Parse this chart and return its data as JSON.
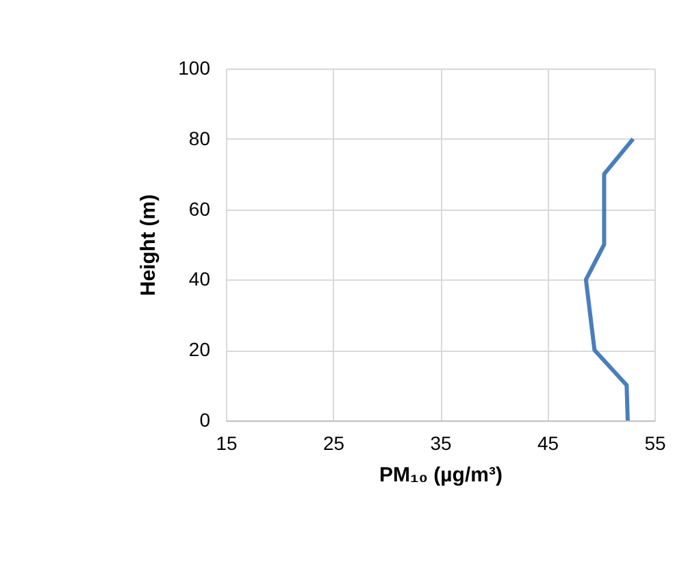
{
  "chart_data": {
    "type": "line",
    "xlabel": "PM₁₀ (µg/m³)",
    "ylabel": "Height (m)",
    "x": [
      52.5,
      52.4,
      49.4,
      48.6,
      50.3,
      50.3,
      53.0
    ],
    "series": [
      {
        "color": "#4a7ebb",
        "values": [
          0,
          10,
          20,
          40,
          50,
          70,
          80
        ]
      }
    ],
    "xlim": [
      15,
      55
    ],
    "xticks": [
      15,
      25,
      35,
      45,
      55
    ],
    "ylim": [
      0,
      100
    ],
    "yticks": [
      0,
      20,
      40,
      60,
      80,
      100
    ],
    "grid": true,
    "legend": false,
    "marker": "none",
    "line_style": "solid"
  }
}
